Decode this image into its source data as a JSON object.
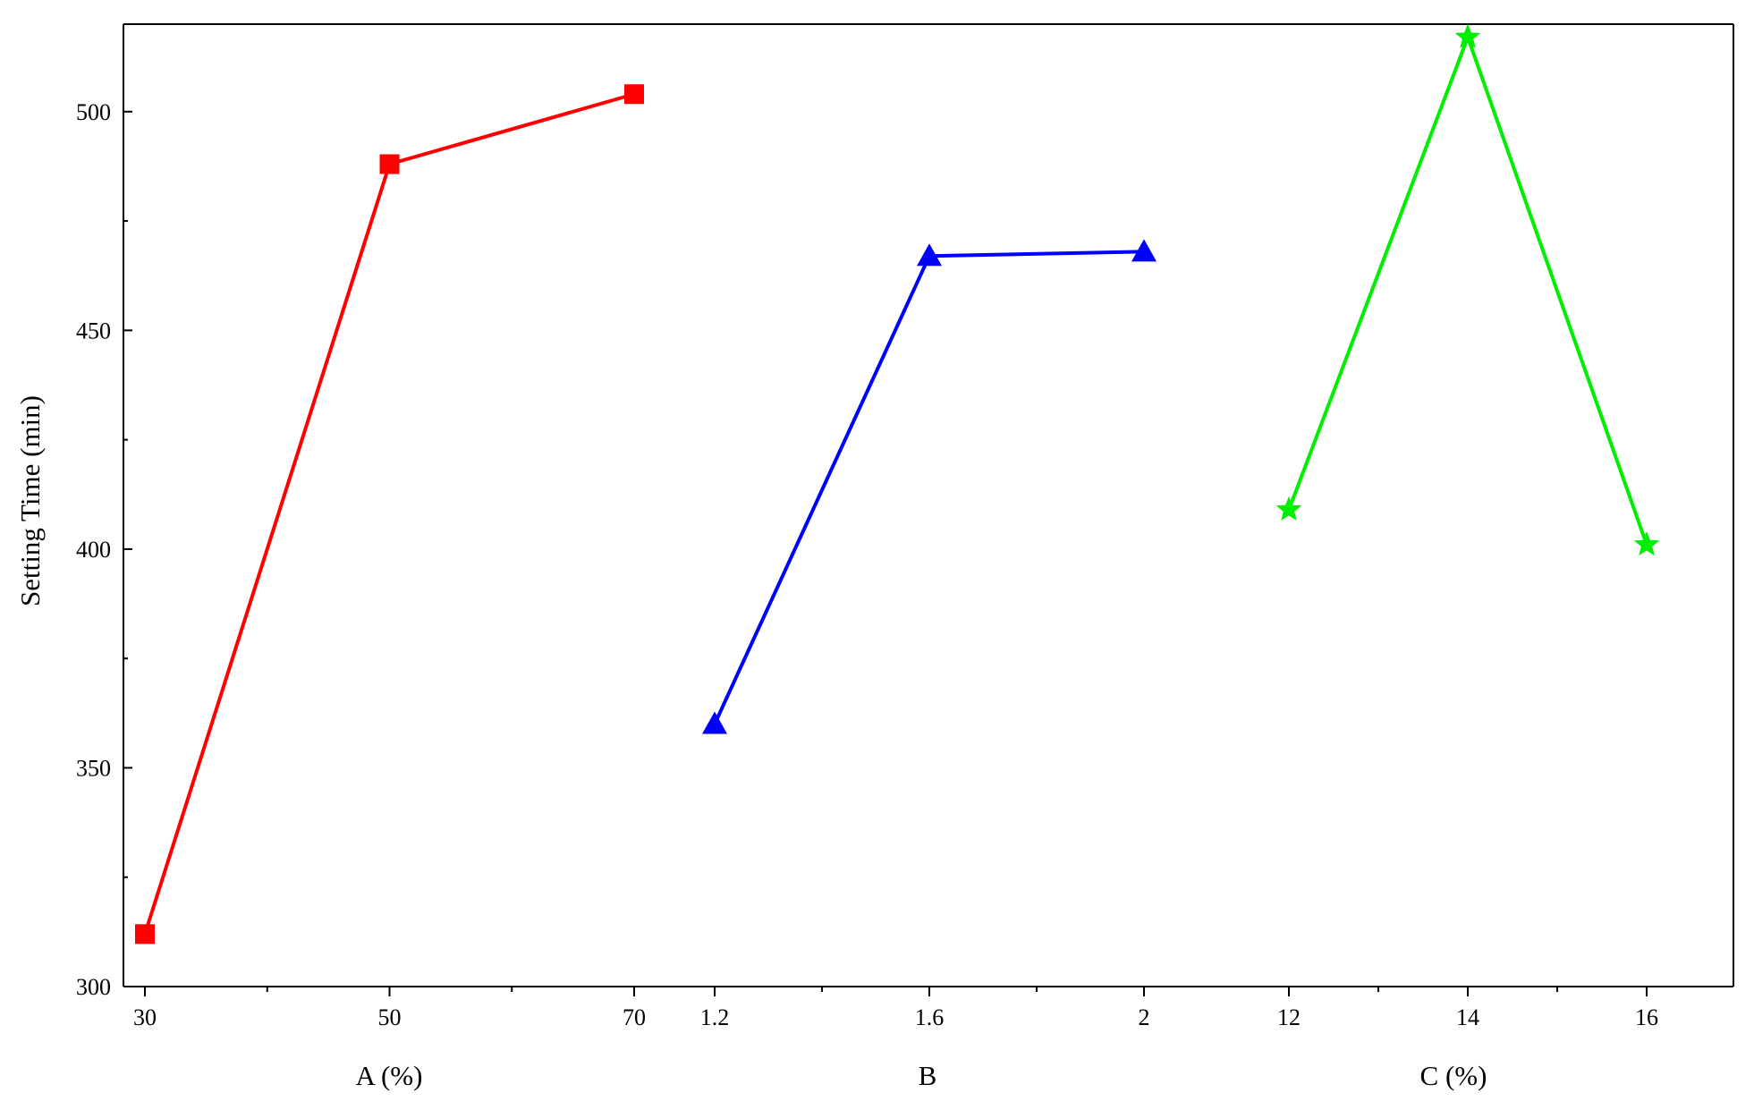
{
  "chart_data": {
    "type": "line",
    "ylabel": "Setting Time (min)",
    "ylim": [
      300,
      520
    ],
    "y_ticks": [
      300,
      350,
      400,
      450,
      500
    ],
    "y_tick_labels": [
      "300",
      "350",
      "400",
      "450",
      "500"
    ],
    "grid": false,
    "legend": "none",
    "panels": [
      {
        "xlabel": "A (%)",
        "x": [
          30,
          50,
          70
        ],
        "tick_labels": [
          "30",
          "50",
          "70"
        ],
        "values": [
          312,
          488,
          504
        ],
        "marker": "square",
        "color": "#ff0000"
      },
      {
        "xlabel": "B",
        "x": [
          1.2,
          1.6,
          2
        ],
        "tick_labels": [
          "1.2",
          "1.6",
          "2"
        ],
        "values": [
          360,
          467,
          468
        ],
        "marker": "triangle",
        "color": "#0000ff"
      },
      {
        "xlabel": "C (%)",
        "x": [
          12,
          14,
          16
        ],
        "tick_labels": [
          "12",
          "14",
          "16"
        ],
        "values": [
          409,
          517,
          401
        ],
        "marker": "star",
        "color": "#00ee00"
      }
    ]
  }
}
